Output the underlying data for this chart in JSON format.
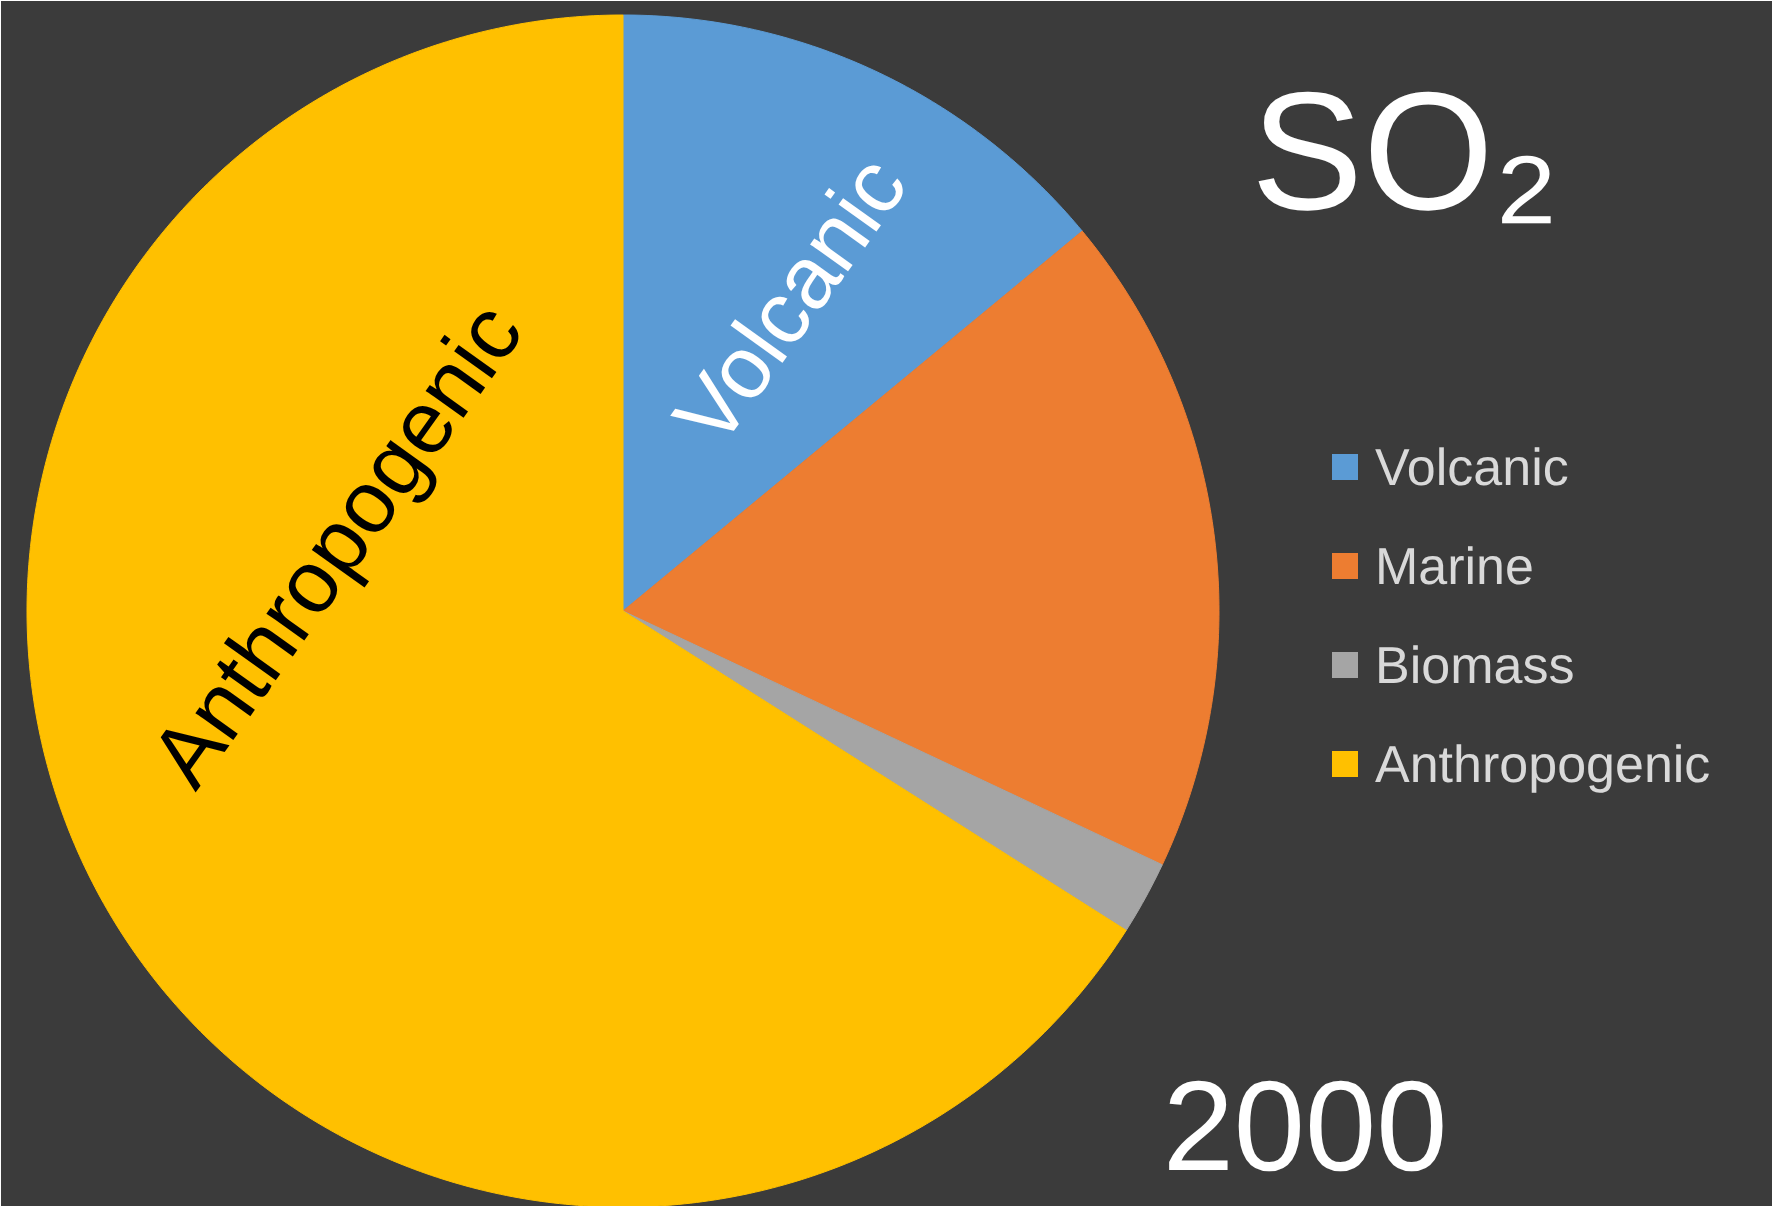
{
  "chart_data": {
    "type": "pie",
    "title": "SO₂",
    "categories": [
      "Volcanic",
      "Marine",
      "Biomass",
      "Anthropogenic"
    ],
    "values": [
      14,
      18,
      2,
      66
    ],
    "colors": [
      "#5b9bd5",
      "#ed7d31",
      "#a5a5a5",
      "#ffc000"
    ],
    "legend": "right",
    "annotations": [
      {
        "text": "Volcanic",
        "x": "Volcanic"
      },
      {
        "text": "Anthropogenic",
        "x": "Anthropogenic"
      },
      "2000"
    ]
  }
}
